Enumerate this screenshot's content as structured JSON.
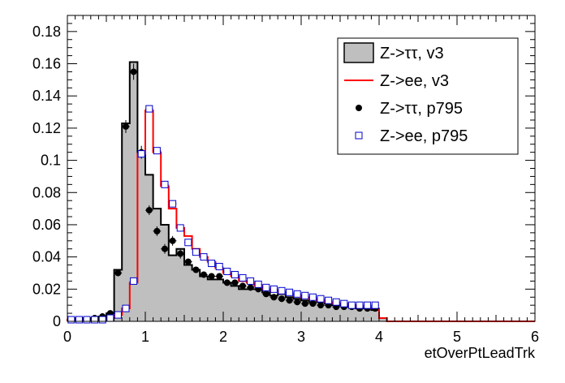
{
  "chart_data": {
    "type": "histogram",
    "title": "",
    "xlabel": "etOverPtLeadTrk",
    "ylabel": "",
    "xlim": [
      0,
      6
    ],
    "ylim": [
      0,
      0.19
    ],
    "grid": false,
    "legend_placement": "top-right",
    "x_ticks": [
      "0",
      "1",
      "2",
      "3",
      "4",
      "5",
      "6"
    ],
    "y_ticks": [
      "0",
      "0.02",
      "0.04",
      "0.06",
      "0.08",
      "0.1",
      "0.12",
      "0.14",
      "0.16",
      "0.18"
    ],
    "bin_edges": [
      0,
      0.1,
      0.2,
      0.3,
      0.4,
      0.5,
      0.6,
      0.7,
      0.8,
      0.9,
      1.0,
      1.1,
      1.2,
      1.3,
      1.4,
      1.5,
      1.6,
      1.7,
      1.8,
      1.9,
      2.0,
      2.1,
      2.2,
      2.3,
      2.4,
      2.5,
      2.6,
      2.7,
      2.8,
      2.9,
      3.0,
      3.1,
      3.2,
      3.3,
      3.4,
      3.5,
      3.6,
      3.7,
      3.8,
      3.9,
      4.0,
      4.1,
      4.2,
      4.3,
      4.4,
      4.5,
      4.6,
      4.7,
      4.8,
      4.9,
      5.0,
      5.1,
      5.2,
      5.3,
      5.4,
      5.5,
      5.6,
      5.7,
      5.8,
      5.9,
      6.0
    ],
    "series": [
      {
        "name": "Z->ττ, v3",
        "style": "filled-step",
        "color": "#bfbfbf",
        "line_color": "#000000",
        "values": [
          0.001,
          0.001,
          0.001,
          0.002,
          0.003,
          0.005,
          0.032,
          0.123,
          0.161,
          0.105,
          0.091,
          0.07,
          0.06,
          0.041,
          0.045,
          0.035,
          0.032,
          0.028,
          0.026,
          0.026,
          0.024,
          0.022,
          0.02,
          0.02,
          0.02,
          0.018,
          0.016,
          0.017,
          0.015,
          0.014,
          0.013,
          0.012,
          0.012,
          0.011,
          0.01,
          0.01,
          0.009,
          0.008,
          0.008,
          0.007,
          0.002,
          0,
          0,
          0,
          0,
          0,
          0,
          0,
          0,
          0,
          0,
          0,
          0,
          0,
          0,
          0,
          0,
          0,
          0,
          0
        ]
      },
      {
        "name": "Z->ee, v3",
        "style": "step",
        "color": "#ff0000",
        "values": [
          0.001,
          0.001,
          0.001,
          0.001,
          0.001,
          0.002,
          0.004,
          0.008,
          0.024,
          0.104,
          0.131,
          0.105,
          0.084,
          0.07,
          0.058,
          0.053,
          0.045,
          0.04,
          0.037,
          0.033,
          0.03,
          0.028,
          0.025,
          0.024,
          0.022,
          0.02,
          0.019,
          0.018,
          0.017,
          0.016,
          0.015,
          0.014,
          0.013,
          0.012,
          0.011,
          0.011,
          0.01,
          0.009,
          0.009,
          0.008,
          0.002,
          0,
          0,
          0,
          0,
          0,
          0,
          0,
          0,
          0,
          0,
          0,
          0,
          0,
          0,
          0,
          0,
          0,
          0,
          0
        ]
      },
      {
        "name": "Z->ττ, p795",
        "style": "points",
        "marker": "filled-circle",
        "color": "#000000",
        "values": [
          0.001,
          0.001,
          0.001,
          0.002,
          0.003,
          0.005,
          0.03,
          0.121,
          0.155,
          0.105,
          0.069,
          0.056,
          0.045,
          0.05,
          0.042,
          0.037,
          0.032,
          0.029,
          0.028,
          0.028,
          0.024,
          0.024,
          0.022,
          0.021,
          0.02,
          0.017,
          0.015,
          0.014,
          0.013,
          0.012,
          0.011,
          0.011,
          0.01,
          0.01,
          0.009,
          0.009,
          0.009,
          0.008,
          0.008,
          0.008,
          null,
          null,
          null,
          null,
          null,
          null,
          null,
          null,
          null,
          null,
          null,
          null,
          null,
          null,
          null,
          null,
          null,
          null,
          null,
          null
        ],
        "errors": [
          0.001,
          0.001,
          0.001,
          0.001,
          0.001,
          0.001,
          0.002,
          0.004,
          0.005,
          0.004,
          0.003,
          0.003,
          0.003,
          0.003,
          0.003,
          0.002,
          0.002,
          0.002,
          0.002,
          0.002,
          0.002,
          0.002,
          0.002,
          0.002,
          0.002,
          0.002,
          0.002,
          0.002,
          0.002,
          0.002,
          0.001,
          0.001,
          0.001,
          0.001,
          0.001,
          0.001,
          0.001,
          0.001,
          0.001,
          0.001,
          null,
          null,
          null,
          null,
          null,
          null,
          null,
          null,
          null,
          null,
          null,
          null,
          null,
          null,
          null,
          null,
          null,
          null,
          null,
          null
        ]
      },
      {
        "name": "Z->ee, p795",
        "style": "points",
        "marker": "open-square",
        "color": "#0000cc",
        "values": [
          0.001,
          0.001,
          0.001,
          0.001,
          0.001,
          0.002,
          0.004,
          0.008,
          0.025,
          0.104,
          0.132,
          0.106,
          0.085,
          0.073,
          0.058,
          0.049,
          0.043,
          0.04,
          0.036,
          0.034,
          0.031,
          0.029,
          0.027,
          0.025,
          0.023,
          0.021,
          0.02,
          0.019,
          0.018,
          0.017,
          0.016,
          0.015,
          0.014,
          0.013,
          0.012,
          0.011,
          0.01,
          0.01,
          0.01,
          0.01,
          null,
          null,
          null,
          null,
          null,
          null,
          null,
          null,
          null,
          null,
          null,
          null,
          null,
          null,
          null,
          null,
          null,
          null,
          null,
          null
        ]
      }
    ]
  }
}
